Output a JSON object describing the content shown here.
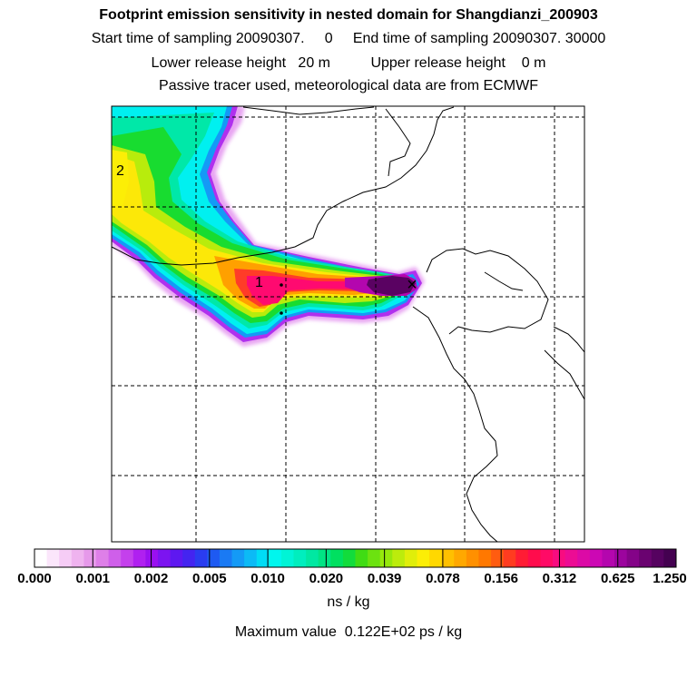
{
  "header": {
    "title": "Footprint emission sensitivity in nested domain for Shangdianzi_200903",
    "line2": "Start time of sampling 20090307.     0     End time of sampling 20090307. 30000",
    "line3": "Lower release height   20 m          Upper release height    0 m",
    "line4": "Passive tracer used, meteorological data are from ECMWF"
  },
  "map": {
    "markers": [
      {
        "label": "1"
      },
      {
        "label": "2"
      }
    ],
    "receptor_symbol": "×",
    "grid": "dashed",
    "coastline_color": "#000000"
  },
  "colorbar": {
    "tick_labels": [
      "0.000",
      "0.001",
      "0.002",
      "0.005",
      "0.010",
      "0.020",
      "0.039",
      "0.078",
      "0.156",
      "0.312",
      "0.625",
      "1.250"
    ],
    "colors": [
      "#ffffff",
      "#fbe6fb",
      "#f6ccf6",
      "#efb3ef",
      "#e699ea",
      "#de7fe8",
      "#cf5fea",
      "#c440ec",
      "#b020f0",
      "#9a10f0",
      "#7c14f0",
      "#5e18f0",
      "#4424f0",
      "#2a3cf0",
      "#1e5af2",
      "#1a7af4",
      "#149af6",
      "#0cbaf6",
      "#00dcf6",
      "#00f6ee",
      "#00f4d6",
      "#00eebe",
      "#00e8a2",
      "#00e484",
      "#00e060",
      "#12dc3c",
      "#40dc14",
      "#6ce210",
      "#96e80c",
      "#bcec0c",
      "#e0ee0a",
      "#fcee06",
      "#ffd800",
      "#ffc000",
      "#ffa800",
      "#ff9000",
      "#ff7800",
      "#ff5c10",
      "#ff3c20",
      "#ff1c34",
      "#ff0c4c",
      "#ff0a66",
      "#f80c80",
      "#ec0c94",
      "#dc0aa6",
      "#cc08b4",
      "#b406ae",
      "#9c049e",
      "#840388",
      "#6a0270",
      "#560260",
      "#440150"
    ],
    "unit": "ns / kg"
  },
  "footer": {
    "max_value": "Maximum value  0.122E+02 ps / kg"
  }
}
